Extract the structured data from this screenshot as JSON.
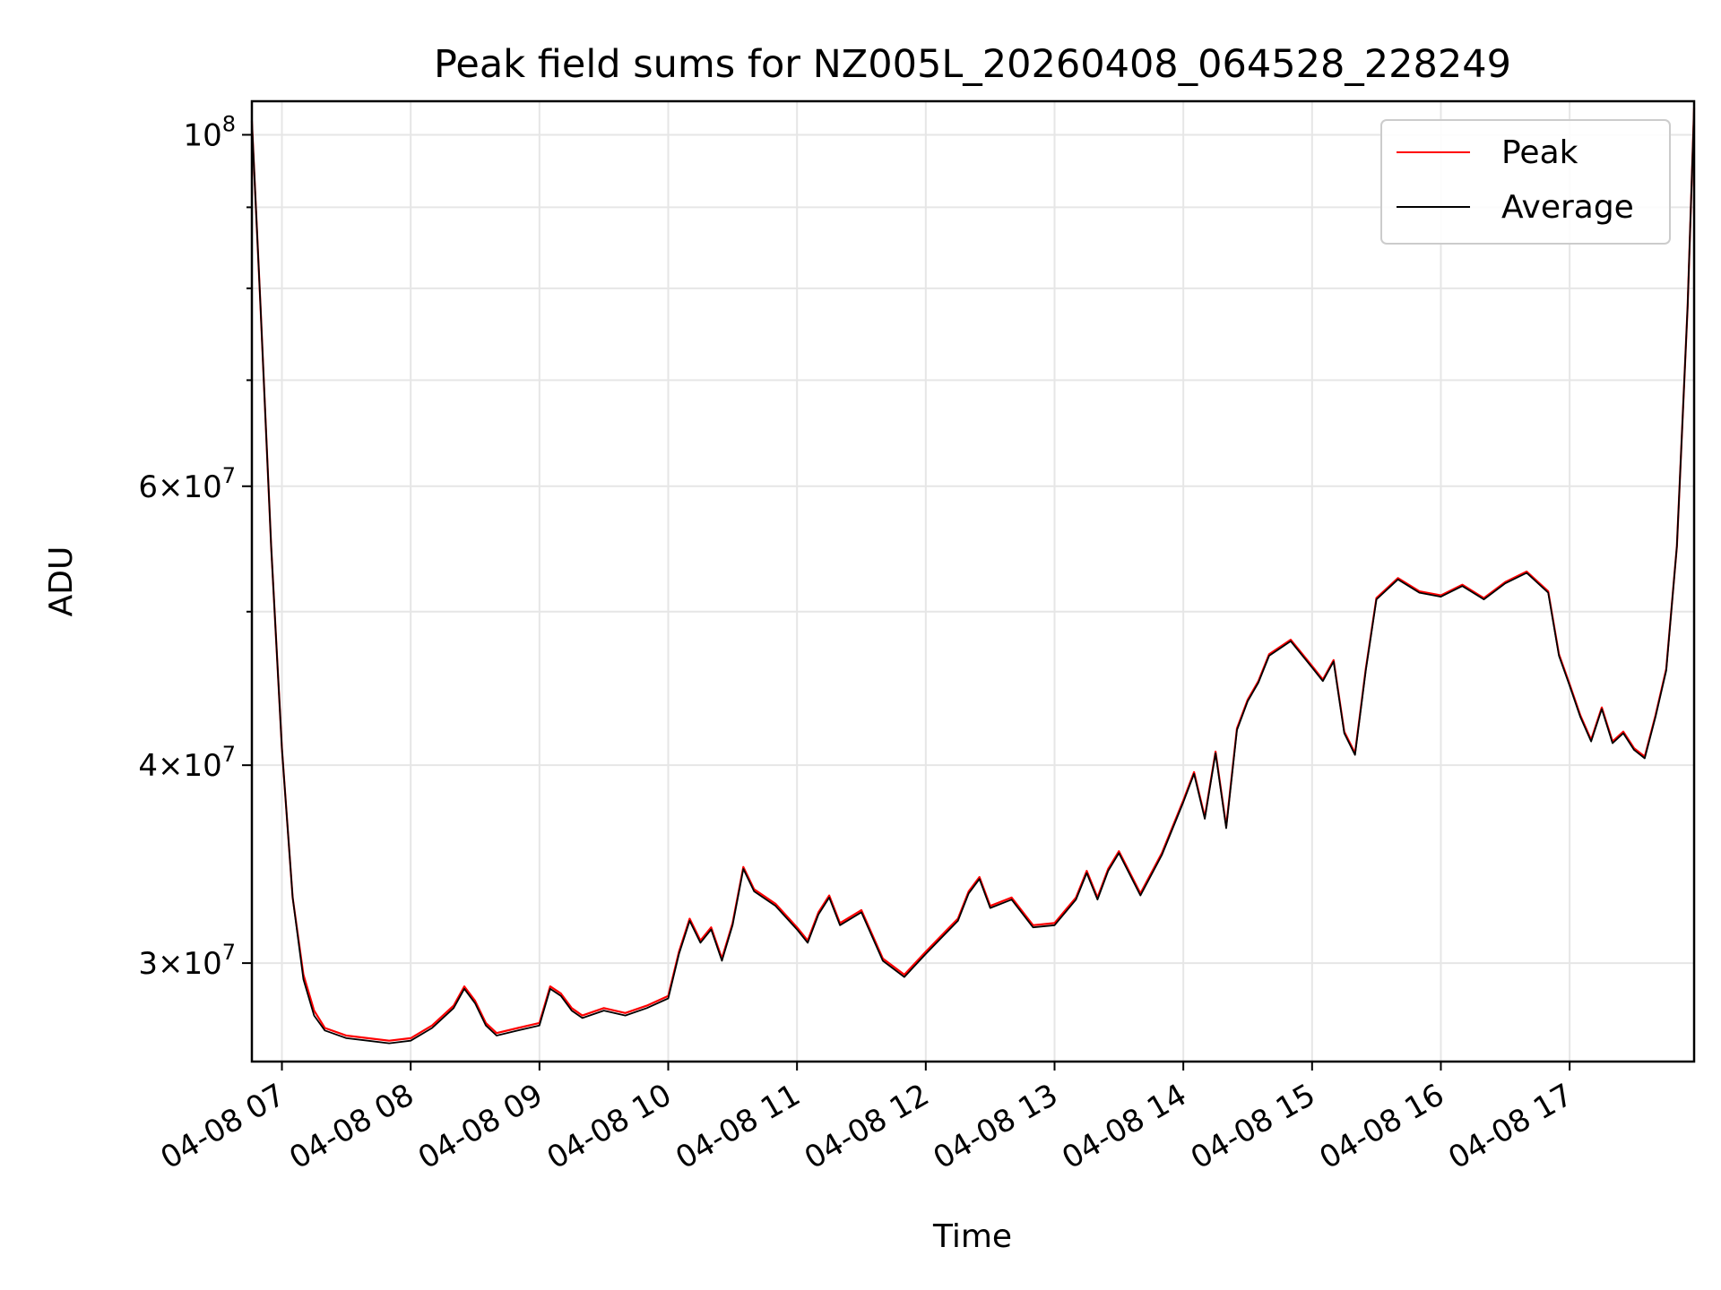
{
  "chart_data": {
    "type": "line",
    "title": "Peak field sums for NZ005L_20260408_064528_228249",
    "xlabel": "Time",
    "ylabel": "ADU",
    "y_scale": "log",
    "ylim": [
      26000000,
      105000000
    ],
    "xlim": [
      "04-08 06:46",
      "04-08 17:58"
    ],
    "grid": true,
    "legend_position": "top-right",
    "x_tick_labels": [
      "04-08 07",
      "04-08 08",
      "04-08 09",
      "04-08 10",
      "04-08 11",
      "04-08 12",
      "04-08 13",
      "04-08 14",
      "04-08 15",
      "04-08 16",
      "04-08 17"
    ],
    "x_ticks": [
      "04-08 07:00",
      "04-08 08:00",
      "04-08 09:00",
      "04-08 10:00",
      "04-08 11:00",
      "04-08 12:00",
      "04-08 13:00",
      "04-08 14:00",
      "04-08 15:00",
      "04-08 16:00",
      "04-08 17:00"
    ],
    "y_major_ticks": [
      {
        "value": 30000000,
        "mantissa": "3",
        "exp": "7"
      },
      {
        "value": 40000000,
        "mantissa": "4",
        "exp": "7"
      },
      {
        "value": 60000000,
        "mantissa": "6",
        "exp": "7"
      },
      {
        "value": 100000000,
        "mantissa": "",
        "exp": "8"
      }
    ],
    "y_minor_ticks": [
      50000000,
      70000000,
      80000000,
      90000000
    ],
    "x": [
      "04-08 06:46",
      "04-08 06:50",
      "04-08 06:55",
      "04-08 07:00",
      "04-08 07:05",
      "04-08 07:10",
      "04-08 07:15",
      "04-08 07:20",
      "04-08 07:30",
      "04-08 07:40",
      "04-08 07:50",
      "04-08 08:00",
      "04-08 08:10",
      "04-08 08:20",
      "04-08 08:25",
      "04-08 08:30",
      "04-08 08:35",
      "04-08 08:40",
      "04-08 08:50",
      "04-08 09:00",
      "04-08 09:05",
      "04-08 09:10",
      "04-08 09:15",
      "04-08 09:20",
      "04-08 09:30",
      "04-08 09:40",
      "04-08 09:50",
      "04-08 10:00",
      "04-08 10:05",
      "04-08 10:10",
      "04-08 10:15",
      "04-08 10:20",
      "04-08 10:25",
      "04-08 10:30",
      "04-08 10:35",
      "04-08 10:40",
      "04-08 10:50",
      "04-08 11:00",
      "04-08 11:05",
      "04-08 11:10",
      "04-08 11:15",
      "04-08 11:20",
      "04-08 11:30",
      "04-08 11:40",
      "04-08 11:50",
      "04-08 12:00",
      "04-08 12:10",
      "04-08 12:15",
      "04-08 12:20",
      "04-08 12:25",
      "04-08 12:30",
      "04-08 12:40",
      "04-08 12:50",
      "04-08 13:00",
      "04-08 13:10",
      "04-08 13:15",
      "04-08 13:20",
      "04-08 13:25",
      "04-08 13:30",
      "04-08 13:40",
      "04-08 13:50",
      "04-08 14:00",
      "04-08 14:05",
      "04-08 14:10",
      "04-08 14:15",
      "04-08 14:20",
      "04-08 14:25",
      "04-08 14:30",
      "04-08 14:35",
      "04-08 14:40",
      "04-08 14:50",
      "04-08 15:00",
      "04-08 15:05",
      "04-08 15:10",
      "04-08 15:15",
      "04-08 15:20",
      "04-08 15:25",
      "04-08 15:30",
      "04-08 15:40",
      "04-08 15:50",
      "04-08 16:00",
      "04-08 16:10",
      "04-08 16:20",
      "04-08 16:30",
      "04-08 16:40",
      "04-08 16:50",
      "04-08 16:55",
      "04-08 17:00",
      "04-08 17:05",
      "04-08 17:10",
      "04-08 17:15",
      "04-08 17:20",
      "04-08 17:25",
      "04-08 17:30",
      "04-08 17:35",
      "04-08 17:40",
      "04-08 17:45",
      "04-08 17:50",
      "04-08 17:55",
      "04-08 17:58"
    ],
    "series": [
      {
        "name": "Peak",
        "color": "#ff0000",
        "values": [
          102000000,
          78000000,
          55000000,
          41000000,
          33000000,
          29500000,
          28000000,
          27300000,
          27000000,
          26900000,
          26800000,
          26900000,
          27400000,
          28200000,
          29000000,
          28400000,
          27500000,
          27100000,
          27300000,
          27500000,
          29000000,
          28700000,
          28100000,
          27800000,
          28100000,
          27900000,
          28200000,
          28600000,
          30500000,
          32000000,
          31000000,
          31600000,
          30200000,
          31800000,
          34500000,
          33400000,
          32700000,
          31600000,
          31000000,
          32300000,
          33100000,
          31800000,
          32400000,
          30200000,
          29500000,
          30500000,
          31500000,
          32000000,
          33300000,
          34000000,
          32600000,
          33000000,
          31700000,
          31800000,
          33000000,
          34300000,
          33000000,
          34400000,
          35300000,
          33200000,
          35200000,
          38000000,
          39600000,
          37100000,
          40800000,
          36600000,
          42200000,
          44000000,
          45200000,
          47000000,
          48000000,
          46200000,
          45300000,
          46600000,
          42000000,
          40700000,
          46000000,
          51000000,
          52500000,
          51500000,
          51200000,
          52000000,
          51000000,
          52200000,
          53000000,
          51500000,
          47000000,
          45000000,
          43000000,
          41500000,
          43500000,
          41400000,
          42000000,
          41000000,
          40500000,
          43000000,
          46000000,
          55000000,
          78000000,
          104000000
        ]
      },
      {
        "name": "Average",
        "color": "#000000",
        "values": [
          102000000,
          78000000,
          55000000,
          41000000,
          33000000,
          29300000,
          27800000,
          27200000,
          26900000,
          26800000,
          26700000,
          26800000,
          27300000,
          28100000,
          28900000,
          28300000,
          27400000,
          27000000,
          27200000,
          27400000,
          28900000,
          28600000,
          28000000,
          27700000,
          28000000,
          27800000,
          28100000,
          28500000,
          30400000,
          31900000,
          30900000,
          31500000,
          30100000,
          31700000,
          34400000,
          33300000,
          32600000,
          31500000,
          30900000,
          32200000,
          33000000,
          31700000,
          32300000,
          30100000,
          29400000,
          30400000,
          31400000,
          31900000,
          33200000,
          33900000,
          32500000,
          32900000,
          31600000,
          31700000,
          32900000,
          34200000,
          32900000,
          34300000,
          35200000,
          33100000,
          35100000,
          37900000,
          39500000,
          37000000,
          40700000,
          36500000,
          42100000,
          43900000,
          45100000,
          46900000,
          47900000,
          46100000,
          45200000,
          46500000,
          41900000,
          40600000,
          45900000,
          50900000,
          52400000,
          51400000,
          51100000,
          51900000,
          50900000,
          52100000,
          52900000,
          51400000,
          46900000,
          44900000,
          42900000,
          41400000,
          43400000,
          41300000,
          41900000,
          40900000,
          40400000,
          42900000,
          45900000,
          55000000,
          78000000,
          104000000
        ]
      }
    ]
  }
}
